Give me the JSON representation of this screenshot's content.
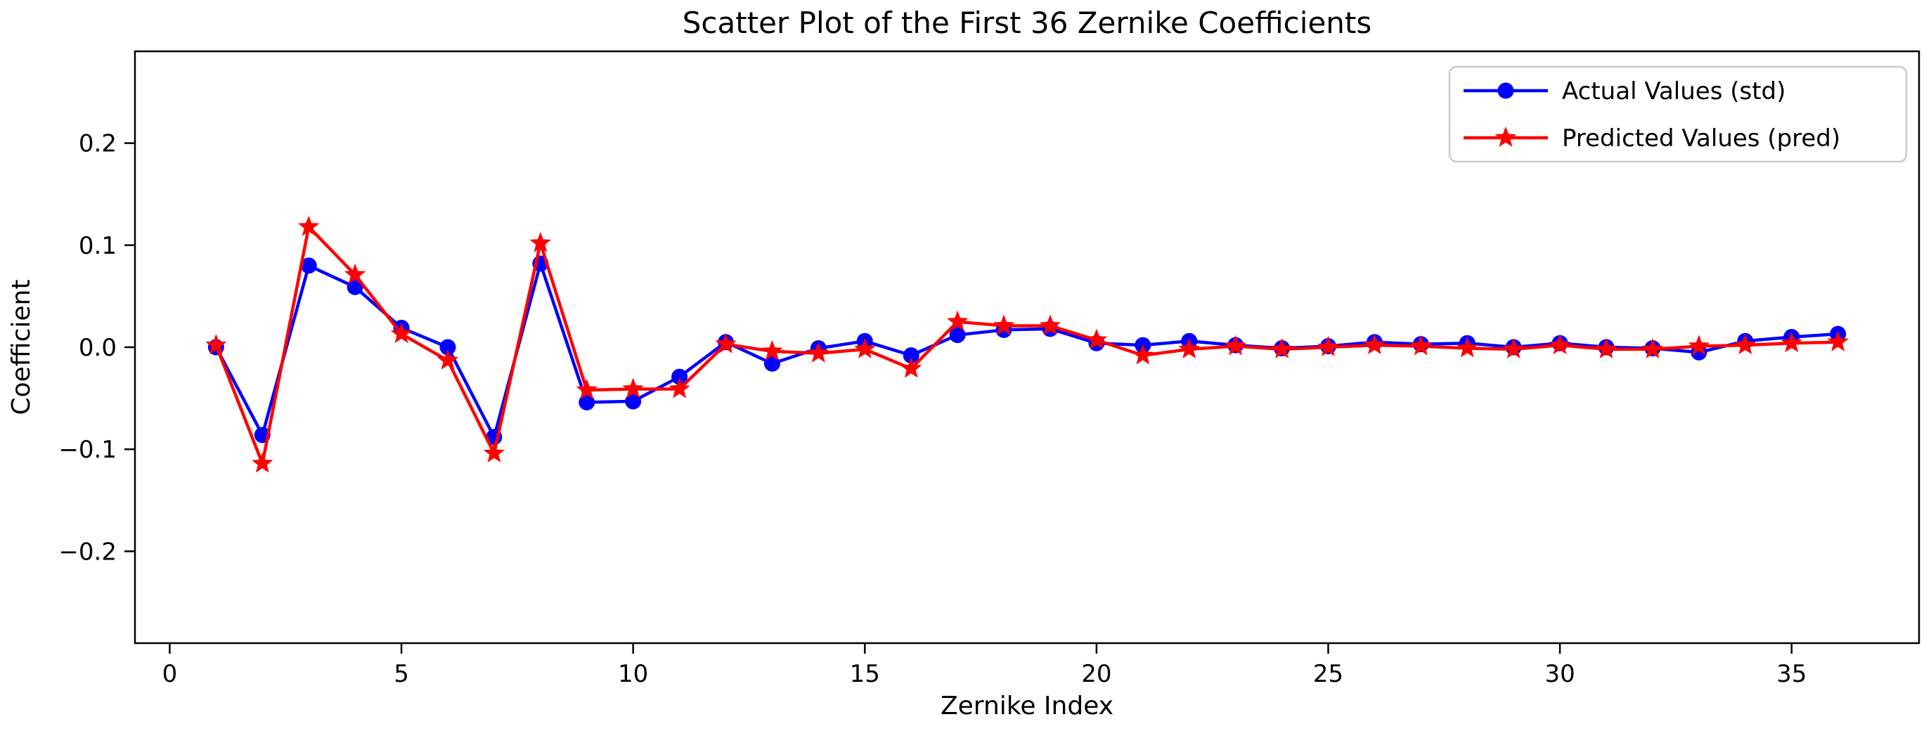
{
  "figure": {
    "title": "Scatter Plot of the First 36 Zernike Coefficients",
    "xlabel": "Zernike Index",
    "ylabel": "Coefficient"
  },
  "chart_data": {
    "type": "line",
    "title": "Scatter Plot of the First 36 Zernike Coefficients",
    "xlabel": "Zernike Index",
    "ylabel": "Coefficient",
    "grid": false,
    "legend_position": "upper right",
    "xlim": [
      -0.75,
      37.75
    ],
    "ylim": [
      -0.29,
      0.29
    ],
    "xticks": [
      0,
      5,
      10,
      15,
      20,
      25,
      30,
      35
    ],
    "xtick_labels": [
      "0",
      "5",
      "10",
      "15",
      "20",
      "25",
      "30",
      "35"
    ],
    "yticks": [
      0.2,
      0.1,
      0.0,
      -0.1,
      -0.2
    ],
    "ytick_labels": [
      "0.2",
      "0.1",
      "0.0",
      "−0.1",
      "−0.2"
    ],
    "x": [
      1,
      2,
      3,
      4,
      5,
      6,
      7,
      8,
      9,
      10,
      11,
      12,
      13,
      14,
      15,
      16,
      17,
      18,
      19,
      20,
      21,
      22,
      23,
      24,
      25,
      26,
      27,
      28,
      29,
      30,
      31,
      32,
      33,
      34,
      35,
      36
    ],
    "series": [
      {
        "name": "Actual Values (std)",
        "color": "#0000ff",
        "marker": "circle",
        "values": [
          0.0,
          -0.086,
          0.08,
          0.059,
          0.019,
          0.0,
          -0.088,
          0.082,
          -0.054,
          -0.053,
          -0.029,
          0.005,
          -0.016,
          -0.001,
          0.006,
          -0.008,
          0.012,
          0.017,
          0.018,
          0.004,
          0.002,
          0.006,
          0.002,
          -0.001,
          0.001,
          0.005,
          0.003,
          0.004,
          0.0,
          0.004,
          0.0,
          -0.001,
          -0.005,
          0.006,
          0.01,
          0.013
        ]
      },
      {
        "name": "Predicted Values (pred)",
        "color": "#ff0000",
        "marker": "star",
        "values": [
          0.002,
          -0.114,
          0.118,
          0.071,
          0.013,
          -0.013,
          -0.104,
          0.102,
          -0.042,
          -0.041,
          -0.041,
          0.003,
          -0.004,
          -0.006,
          -0.002,
          -0.021,
          0.025,
          0.021,
          0.021,
          0.007,
          -0.008,
          -0.002,
          0.001,
          -0.002,
          0.0,
          0.002,
          0.001,
          -0.001,
          -0.002,
          0.002,
          -0.002,
          -0.002,
          0.001,
          0.002,
          0.004,
          0.005
        ]
      }
    ]
  }
}
